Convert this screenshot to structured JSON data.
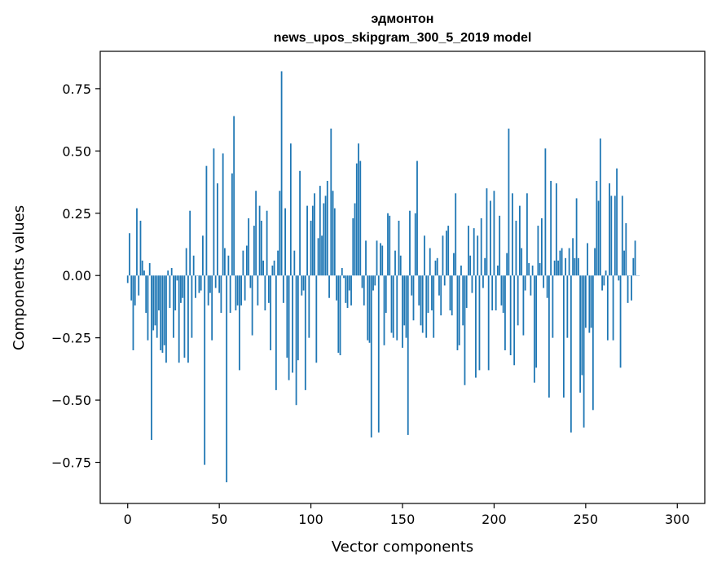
{
  "chart_data": {
    "type": "bar",
    "title": "эдмонтон",
    "subtitle": "news_upos_skipgram_300_5_2019 model",
    "xlabel": "Vector components",
    "ylabel": "Components values",
    "xlim": [
      -15,
      315
    ],
    "ylim": [
      -0.915,
      0.9
    ],
    "xticks": [
      0,
      50,
      100,
      150,
      200,
      250,
      300
    ],
    "xtick_labels": [
      "0",
      "50",
      "100",
      "150",
      "200",
      "250",
      "300"
    ],
    "yticks": [
      0.75,
      0.5,
      0.25,
      0.0,
      -0.25,
      -0.5,
      -0.75
    ],
    "ytick_labels": [
      "0.75",
      "0.50",
      "0.25",
      "0.00",
      "−0.25",
      "−0.50",
      "−0.75"
    ],
    "bar_color": "#1f77b4",
    "grid": false,
    "values": [
      -0.03,
      0.17,
      -0.1,
      -0.3,
      -0.12,
      0.27,
      -0.08,
      0.22,
      0.06,
      0.02,
      -0.15,
      -0.26,
      0.05,
      -0.66,
      -0.22,
      -0.2,
      -0.25,
      -0.14,
      -0.3,
      -0.31,
      -0.28,
      -0.35,
      0.02,
      -0.13,
      0.03,
      -0.25,
      -0.14,
      -0.02,
      -0.35,
      -0.11,
      -0.09,
      -0.33,
      0.11,
      -0.35,
      0.26,
      -0.25,
      0.08,
      -0.09,
      0.0,
      -0.07,
      -0.06,
      0.16,
      -0.76,
      0.44,
      -0.12,
      -0.07,
      -0.26,
      0.51,
      -0.05,
      0.37,
      -0.07,
      -0.15,
      0.49,
      0.11,
      -0.83,
      0.08,
      -0.15,
      0.41,
      0.64,
      -0.14,
      -0.12,
      -0.38,
      -0.12,
      0.1,
      -0.1,
      0.12,
      0.23,
      -0.05,
      -0.24,
      0.2,
      0.34,
      -0.12,
      0.28,
      0.22,
      0.06,
      -0.14,
      0.26,
      -0.11,
      -0.3,
      0.04,
      0.06,
      -0.46,
      0.1,
      0.34,
      0.82,
      -0.11,
      0.27,
      -0.33,
      -0.42,
      0.53,
      -0.39,
      0.1,
      -0.52,
      -0.34,
      0.42,
      -0.08,
      -0.06,
      -0.46,
      0.28,
      -0.25,
      0.22,
      0.28,
      0.33,
      -0.35,
      0.15,
      0.36,
      0.16,
      0.29,
      0.32,
      0.38,
      -0.09,
      0.59,
      0.34,
      0.27,
      -0.1,
      -0.31,
      -0.32,
      0.03,
      -0.01,
      -0.11,
      -0.13,
      -0.06,
      -0.12,
      0.23,
      0.29,
      0.45,
      0.53,
      0.46,
      -0.05,
      -0.12,
      0.14,
      -0.26,
      -0.27,
      -0.65,
      -0.06,
      -0.04,
      0.14,
      -0.63,
      0.13,
      0.12,
      -0.28,
      -0.15,
      0.25,
      0.24,
      -0.23,
      -0.25,
      0.1,
      -0.26,
      0.22,
      0.08,
      -0.29,
      -0.2,
      -0.25,
      -0.64,
      0.26,
      -0.08,
      -0.18,
      0.25,
      0.46,
      -0.12,
      -0.2,
      -0.23,
      0.16,
      -0.25,
      -0.15,
      0.11,
      -0.14,
      -0.25,
      0.06,
      0.07,
      -0.08,
      -0.16,
      0.16,
      -0.04,
      0.18,
      0.2,
      -0.14,
      -0.16,
      0.09,
      0.33,
      -0.3,
      -0.28,
      0.04,
      -0.2,
      -0.44,
      -0.13,
      0.2,
      0.08,
      -0.07,
      0.19,
      -0.41,
      0.16,
      -0.38,
      0.23,
      -0.05,
      0.07,
      0.35,
      -0.38,
      0.3,
      -0.14,
      0.34,
      -0.14,
      0.04,
      0.24,
      -0.12,
      -0.15,
      -0.3,
      0.09,
      0.59,
      -0.32,
      0.33,
      -0.36,
      0.22,
      -0.2,
      0.28,
      0.11,
      -0.24,
      -0.06,
      0.33,
      0.05,
      -0.08,
      0.04,
      -0.43,
      -0.37,
      0.2,
      0.05,
      0.23,
      -0.05,
      0.51,
      -0.09,
      -0.49,
      0.38,
      -0.25,
      0.06,
      0.37,
      0.06,
      0.1,
      0.11,
      -0.49,
      0.07,
      -0.25,
      0.11,
      -0.63,
      0.15,
      0.07,
      0.31,
      0.07,
      -0.47,
      -0.4,
      -0.61,
      -0.21,
      0.13,
      -0.23,
      -0.21,
      -0.54,
      0.11,
      0.38,
      0.3,
      0.55,
      -0.06,
      -0.04,
      0.02,
      -0.26,
      0.37,
      0.32,
      -0.26,
      0.32,
      0.43,
      -0.02,
      -0.37,
      0.32,
      0.1,
      0.21,
      -0.11,
      0.0,
      -0.1,
      0.07,
      0.14,
      0.0,
      0.0
    ]
  }
}
